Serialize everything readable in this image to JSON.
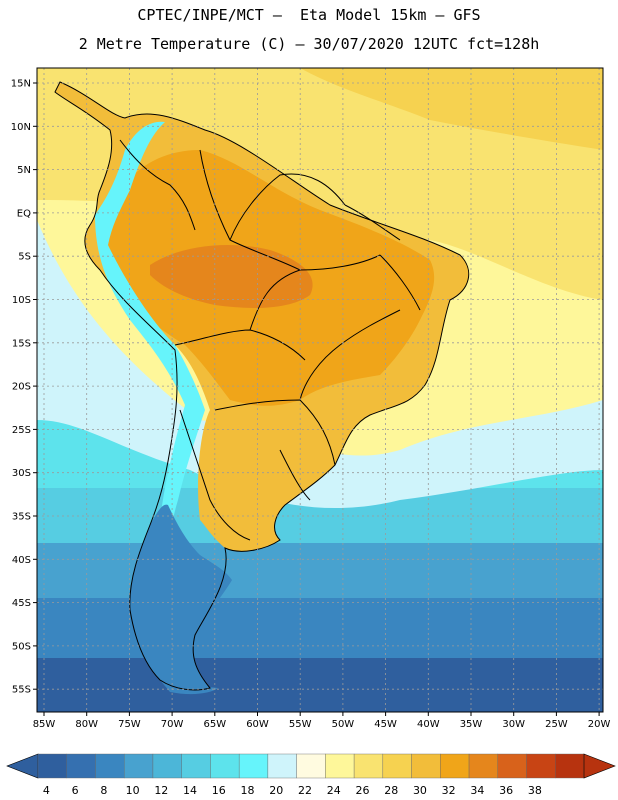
{
  "title": {
    "line1": "CPTEC/INPE/MCT –  Eta Model 15km – GFS",
    "line2": "2 Metre Temperature (C) – 30/07/2020 12UTC fct=128h"
  },
  "lat_labels": [
    "15N",
    "10N",
    "5N",
    "EQ",
    "5S",
    "10S",
    "15S",
    "20S",
    "25S",
    "30S",
    "35S",
    "40S",
    "45S",
    "50S",
    "55S"
  ],
  "lon_labels": [
    "85W",
    "80W",
    "75W",
    "70W",
    "65W",
    "60W",
    "55W",
    "50W",
    "45W",
    "40W",
    "35W",
    "30W",
    "25W",
    "20W"
  ],
  "colorbar": {
    "labels": [
      "4",
      "6",
      "8",
      "10",
      "12",
      "14",
      "16",
      "18",
      "20",
      "22",
      "24",
      "26",
      "28",
      "30",
      "32",
      "34",
      "36",
      "38"
    ],
    "colors": [
      "#2f5f9e",
      "#3570b0",
      "#3a86c0",
      "#48a2cf",
      "#4cb6d8",
      "#56cde2",
      "#5de3ec",
      "#66f4fb",
      "#cff4fb",
      "#fffbe0",
      "#fef79a",
      "#f9e370",
      "#f6d250",
      "#f2bd3a",
      "#f0a519",
      "#e5861c",
      "#d8621b",
      "#c84414",
      "#b7330f"
    ],
    "left_arrow_color": "#2f5f9e",
    "right_arrow_color": "#b7330f"
  },
  "field_colors": {
    "ocean_far_south": "#2f5f9e",
    "ocean_south": "#3a86c0",
    "ocean_mid": "#48a2cf",
    "ocean_cool": "#56cde2",
    "ocean_cyan": "#5de3ec",
    "ocean_light": "#cff4fb",
    "ocean_warm": "#fef79a",
    "ocean_tropic": "#f9e370",
    "ocean_hot": "#f6d250",
    "land_amazon": "#f0a519",
    "land_core": "#e5861c",
    "land_south": "#f2bd3a",
    "andes_cold": "#66f4fb",
    "patagonia": "#3a86c0",
    "border_color": "#000000"
  }
}
